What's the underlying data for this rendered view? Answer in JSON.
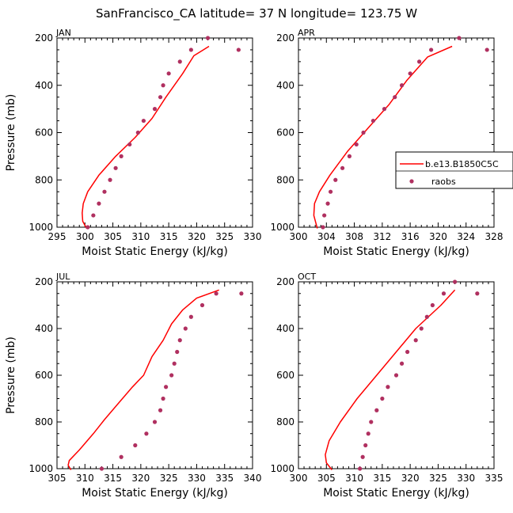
{
  "figure": {
    "title": "SanFrancisco_CA  latitude= 37 N longitude= 123.75 W"
  },
  "legend": {
    "model_label": "b.e13.B1850C5C",
    "obs_label": "raobs"
  },
  "colors": {
    "model_line": "#ff0000",
    "obs_marker": "#b03060",
    "axes": "#000000"
  },
  "chart_data": [
    {
      "type": "line",
      "panel": "JAN",
      "xlabel": "Moist Static Energy (kJ/kg)",
      "ylabel": "Pressure (mb)",
      "xlim": [
        295,
        330
      ],
      "ylim": [
        1000,
        200
      ],
      "xticks": [
        295,
        300,
        305,
        310,
        315,
        320,
        325,
        330
      ],
      "yticks": [
        200,
        400,
        600,
        800,
        1000
      ],
      "series": [
        {
          "name": "b.e13.B1850C5C",
          "kind": "line",
          "x": [
            300.3,
            299.6,
            299.5,
            299.7,
            300.5,
            302.5,
            305.5,
            309.0,
            312.0,
            314.5,
            317.5,
            319.5,
            322.2
          ],
          "y": [
            1005,
            975,
            940,
            900,
            850,
            780,
            700,
            620,
            540,
            450,
            350,
            275,
            235
          ]
        },
        {
          "name": "raobs",
          "kind": "scatter",
          "x": [
            300.5,
            301.5,
            302.5,
            303.5,
            304.5,
            305.5,
            306.5,
            308.0,
            309.5,
            310.5,
            312.5,
            313.5,
            314.0,
            315.0,
            317.0,
            319.0,
            322.0,
            327.5
          ],
          "y": [
            1000,
            950,
            900,
            850,
            800,
            750,
            700,
            650,
            600,
            550,
            500,
            450,
            400,
            350,
            300,
            250,
            200,
            250
          ]
        }
      ]
    },
    {
      "type": "line",
      "panel": "APR",
      "xlabel": "Moist Static Energy (kJ/kg)",
      "ylabel": "Pressure (mb)",
      "xlim": [
        300,
        328
      ],
      "ylim": [
        1000,
        200
      ],
      "xticks": [
        300,
        304,
        308,
        312,
        316,
        320,
        324,
        328
      ],
      "yticks": [
        200,
        400,
        600,
        800,
        1000
      ],
      "series": [
        {
          "name": "b.e13.B1850C5C",
          "kind": "line",
          "x": [
            302.7,
            302.2,
            302.3,
            303.0,
            304.5,
            307.0,
            310.0,
            313.0,
            315.5,
            318.5,
            322.0
          ],
          "y": [
            1005,
            950,
            900,
            850,
            780,
            680,
            580,
            480,
            380,
            280,
            235
          ]
        },
        {
          "name": "raobs",
          "kind": "scatter",
          "x": [
            303.5,
            303.7,
            304.2,
            304.6,
            305.3,
            306.3,
            307.3,
            308.3,
            309.3,
            310.7,
            312.3,
            313.8,
            314.8,
            316.0,
            317.3,
            319.0,
            323.0,
            327.0
          ],
          "y": [
            1000,
            950,
            900,
            850,
            800,
            750,
            700,
            650,
            600,
            550,
            500,
            450,
            400,
            350,
            300,
            250,
            200,
            250
          ]
        }
      ]
    },
    {
      "type": "line",
      "panel": "JUL",
      "xlabel": "Moist Static Energy (kJ/kg)",
      "ylabel": "Pressure (mb)",
      "xlim": [
        305,
        340
      ],
      "ylim": [
        1000,
        200
      ],
      "xticks": [
        305,
        310,
        315,
        320,
        325,
        330,
        335,
        340
      ],
      "yticks": [
        200,
        400,
        600,
        800,
        1000
      ],
      "series": [
        {
          "name": "b.e13.B1850C5C",
          "kind": "line",
          "x": [
            307.5,
            307.0,
            307.2,
            309.0,
            311.5,
            313.5,
            316.0,
            318.5,
            320.5,
            322.0,
            324.0,
            325.5,
            327.5,
            330.0,
            334.0
          ],
          "y": [
            1005,
            985,
            965,
            920,
            850,
            790,
            720,
            650,
            600,
            520,
            450,
            380,
            320,
            270,
            235
          ]
        },
        {
          "name": "raobs",
          "kind": "scatter",
          "x": [
            313.0,
            316.5,
            319.0,
            321.0,
            322.5,
            323.5,
            324.0,
            324.5,
            325.5,
            326.0,
            326.5,
            327.0,
            328.0,
            329.0,
            331.0,
            333.5,
            338.0
          ],
          "y": [
            1000,
            950,
            900,
            850,
            800,
            750,
            700,
            650,
            600,
            550,
            500,
            450,
            400,
            350,
            300,
            250,
            250
          ]
        }
      ]
    },
    {
      "type": "line",
      "panel": "OCT",
      "xlabel": "Moist Static Energy (kJ/kg)",
      "ylabel": "Pressure (mb)",
      "xlim": [
        300,
        335
      ],
      "ylim": [
        1000,
        200
      ],
      "xticks": [
        300,
        305,
        310,
        315,
        320,
        325,
        330,
        335
      ],
      "yticks": [
        200,
        400,
        600,
        800,
        1000
      ],
      "series": [
        {
          "name": "b.e13.B1850C5C",
          "kind": "line",
          "x": [
            306.0,
            305.0,
            304.8,
            305.5,
            307.5,
            310.5,
            314.0,
            317.5,
            321.0,
            325.5,
            328.0
          ],
          "y": [
            1005,
            975,
            940,
            880,
            800,
            700,
            600,
            500,
            400,
            300,
            235
          ]
        },
        {
          "name": "raobs",
          "kind": "scatter",
          "x": [
            311.0,
            311.5,
            312.0,
            312.5,
            313.0,
            314.0,
            315.0,
            316.0,
            317.5,
            318.5,
            319.5,
            321.0,
            322.0,
            323.0,
            324.0,
            326.0,
            328.0,
            332.0
          ],
          "y": [
            1000,
            950,
            900,
            850,
            800,
            750,
            700,
            650,
            600,
            550,
            500,
            450,
            400,
            350,
            300,
            250,
            200,
            250
          ]
        }
      ]
    }
  ]
}
